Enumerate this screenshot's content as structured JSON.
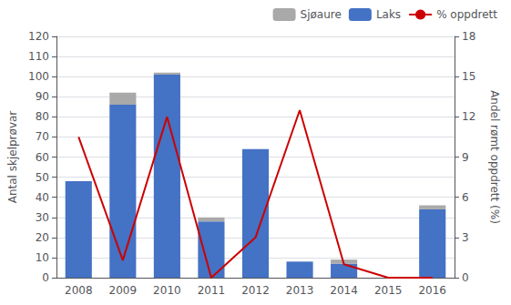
{
  "chart_data": {
    "type": "bar",
    "categories": [
      "2008",
      "2009",
      "2010",
      "2011",
      "2012",
      "2013",
      "2014",
      "2015",
      "2016"
    ],
    "series": [
      {
        "name": "Laks",
        "type": "bar",
        "color": "#4472C4",
        "values": [
          48,
          86,
          101,
          28,
          64,
          8,
          7,
          0,
          34
        ]
      },
      {
        "name": "Sjøaure",
        "type": "bar",
        "color": "#A9A9A9",
        "values": [
          0,
          6,
          1,
          2,
          0,
          0,
          2,
          0,
          2
        ]
      },
      {
        "name": "% oppdrett",
        "type": "line",
        "color": "#CC0000",
        "axis": "y2",
        "values": [
          10.5,
          1.3,
          12.0,
          0.0,
          3.0,
          12.5,
          1.0,
          0.0,
          0.0
        ]
      }
    ],
    "stacked": true,
    "ylabel": "Antal skjelprøvar",
    "y2label": "Andel rømt oppdrett (%)",
    "ylim": [
      0,
      120
    ],
    "yticks": [
      0,
      10,
      20,
      30,
      40,
      50,
      60,
      70,
      80,
      90,
      100,
      110,
      120
    ],
    "y2lim": [
      0,
      18
    ],
    "y2ticks": [
      0,
      3,
      6,
      9,
      12,
      15,
      18
    ],
    "grid": true,
    "legend": "upper right"
  }
}
